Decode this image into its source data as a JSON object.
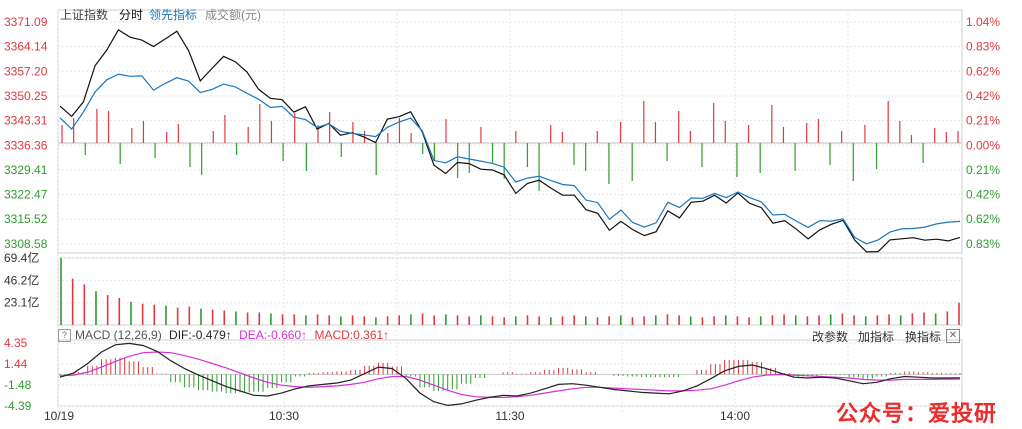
{
  "tabs": {
    "index": "上证指数",
    "time": "分时",
    "leading": "领先指标",
    "amount": "成交额(元)"
  },
  "price_axis_left": [
    "3371.09",
    "3364.14",
    "3357.20",
    "3350.25",
    "3343.31",
    "3336.36",
    "3329.41",
    "3322.47",
    "3315.52",
    "3308.58"
  ],
  "price_axis_right": [
    "1.04%",
    "0.83%",
    "0.62%",
    "0.42%",
    "0.21%",
    "0.00%",
    "0.21%",
    "0.42%",
    "0.62%",
    "0.83%"
  ],
  "volume_axis": [
    "69.4亿",
    "46.2亿",
    "23.1亿"
  ],
  "macd_axis": [
    "4.35",
    "1.44",
    "-1.48",
    "-4.39"
  ],
  "time_axis": [
    "10/19",
    "10:30",
    "11:30",
    "14:00"
  ],
  "macd_header": {
    "help": "?",
    "name": "MACD (12,26,9)",
    "dif": "DIF:-0.479↑",
    "dea": "DEA:-0.660↑",
    "macd": "MACD:0.361↑"
  },
  "buttons": {
    "params": "改参数",
    "add": "加指标",
    "switch": "换指标",
    "close": "✕"
  },
  "watermark": "公众号：爱投研",
  "colors": {
    "up": "#e0393e",
    "down": "#2e9d2e",
    "price_line": "#111111",
    "lead_line": "#1a78c2",
    "dea_line": "#d630d6",
    "grid": "#e6e6e6",
    "axis_text_left": "#e0393e",
    "axis_text_right_up": "#e0393e",
    "axis_text_right_down": "#2e9d2e"
  },
  "chart_data": {
    "type": "line",
    "title": "上证指数 分时",
    "preclose": 3336.36,
    "ylim": [
      3306.0,
      3371.09
    ],
    "series": [
      {
        "name": "上证指数",
        "values": [
          3347.4,
          3344.5,
          3348.6,
          3358.8,
          3363.2,
          3368.9,
          3366.8,
          3366.0,
          3364.2,
          3366.3,
          3368.5,
          3363.0,
          3354.5,
          3358.0,
          3361.4,
          3359.9,
          3357.0,
          3352.1,
          3349.6,
          3349.2,
          3345.7,
          3347.2,
          3340.9,
          3342.5,
          3339.2,
          3339.9,
          3338.7,
          3337.1,
          3343.7,
          3344.4,
          3345.8,
          3340.1,
          3330.7,
          3328.4,
          3331.5,
          3331.2,
          3329.6,
          3329.4,
          3328.0,
          3322.8,
          3325.6,
          3326.5,
          3324.3,
          3322.3,
          3322.3,
          3318.2,
          3317.2,
          3312.4,
          3314.9,
          3312.6,
          3310.9,
          3312.0,
          3317.9,
          3315.9,
          3320.3,
          3320.6,
          3322.3,
          3320.1,
          3322.9,
          3320.0,
          3318.8,
          3314.4,
          3315.1,
          3312.7,
          3310.0,
          3312.5,
          3314.1,
          3315.2,
          3309.6,
          3306.3,
          3306.4,
          3309.7,
          3310.0,
          3310.3,
          3309.6,
          3309.9,
          3309.4,
          3310.4
        ]
      },
      {
        "name": "领先指标",
        "values": [
          3344.1,
          3340.9,
          3345.7,
          3351.4,
          3354.8,
          3356.4,
          3355.8,
          3355.9,
          3351.9,
          3353.8,
          3355.4,
          3354.4,
          3351.2,
          3352.1,
          3353.6,
          3352.8,
          3351.0,
          3349.3,
          3347.0,
          3347.3,
          3344.3,
          3343.6,
          3341.4,
          3342.4,
          3340.3,
          3339.7,
          3339.3,
          3338.8,
          3341.4,
          3342.9,
          3344.0,
          3340.4,
          3332.1,
          3331.4,
          3333.1,
          3332.5,
          3331.9,
          3331.2,
          3330.2,
          3326.0,
          3327.1,
          3327.6,
          3326.4,
          3325.3,
          3325.0,
          3320.9,
          3320.2,
          3315.5,
          3318.1,
          3314.6,
          3313.3,
          3314.5,
          3320.3,
          3318.8,
          3321.5,
          3321.4,
          3322.8,
          3321.6,
          3323.2,
          3321.6,
          3320.4,
          3316.7,
          3316.9,
          3315.0,
          3313.2,
          3315.1,
          3315.0,
          3315.6,
          3310.4,
          3308.6,
          3309.7,
          3311.9,
          3312.8,
          3312.9,
          3313.3,
          3314.2,
          3314.7,
          3314.9
        ]
      }
    ],
    "leading_bars": [
      0.18,
      0.25,
      -0.12,
      0.34,
      0.32,
      -0.21,
      0.15,
      0.22,
      -0.15,
      0.11,
      0.19,
      -0.24,
      -0.32,
      0.12,
      0.28,
      -0.12,
      0.16,
      0.39,
      0.22,
      -0.18,
      0.3,
      -0.28,
      0.18,
      0.31,
      -0.14,
      0.21,
      0.12,
      -0.32,
      0.1,
      0.25,
      0.1,
      -0.11,
      -0.18,
      0.24,
      -0.35,
      -0.3,
      0.16,
      -0.2,
      -0.36,
      0.12,
      -0.24,
      -0.48,
      0.18,
      0.11,
      -0.22,
      -0.28,
      0.12,
      -0.41,
      0.21,
      -0.38,
      0.42,
      0.21,
      -0.18,
      0.32,
      0.12,
      -0.24,
      0.4,
      0.22,
      -0.34,
      0.18,
      -0.3,
      0.38,
      0.16,
      -0.28,
      0.2,
      0.24,
      -0.22,
      0.12,
      -0.38,
      0.18,
      -0.26,
      0.42,
      0.22,
      0.08,
      -0.2,
      0.15,
      0.11,
      0.12
    ],
    "volume": [
      69.4,
      48,
      42,
      35,
      31,
      28,
      24,
      22,
      21,
      20,
      18,
      19,
      17,
      16,
      15,
      14,
      13,
      13,
      12,
      11,
      11,
      10,
      11,
      10,
      9,
      10,
      9,
      8,
      9,
      10,
      11,
      12,
      10,
      11,
      10,
      9,
      10,
      9,
      8,
      9,
      10,
      9,
      8,
      9,
      10,
      9,
      8,
      9,
      10,
      8,
      9,
      10,
      11,
      10,
      9,
      8,
      9,
      10,
      9,
      8,
      9,
      10,
      11,
      10,
      9,
      10,
      11,
      12,
      10,
      9,
      10,
      11,
      10,
      12,
      13,
      12,
      14,
      23.1
    ],
    "macd": {
      "ylim": [
        -4.39,
        4.35
      ],
      "dif": [
        -0.4,
        0.2,
        1.5,
        3.1,
        4.1,
        4.3,
        4.0,
        3.2,
        1.9,
        0.8,
        -0.1,
        -0.9,
        -1.7,
        -2.3,
        -2.9,
        -3.0,
        -2.6,
        -2.0,
        -1.6,
        -1.4,
        -1.2,
        -0.8,
        0.1,
        1.0,
        0.8,
        -0.6,
        -2.6,
        -3.8,
        -4.3,
        -4.1,
        -3.6,
        -3.2,
        -2.9,
        -3.0,
        -2.6,
        -2.0,
        -1.4,
        -1.3,
        -1.5,
        -1.8,
        -2.1,
        -2.3,
        -2.5,
        -2.6,
        -2.7,
        -2.3,
        -1.6,
        -0.6,
        0.5,
        1.1,
        1.3,
        0.8,
        0.2,
        -0.4,
        -0.5,
        -0.4,
        -0.5,
        -0.9,
        -1.3,
        -1.1,
        -0.6,
        -0.3,
        -0.4,
        -0.5,
        -0.5,
        -0.48
      ],
      "dea": [
        -0.2,
        -0.1,
        0.3,
        1.0,
        1.8,
        2.5,
        3.0,
        3.1,
        3.0,
        2.6,
        2.1,
        1.5,
        0.9,
        0.2,
        -0.5,
        -1.1,
        -1.5,
        -1.7,
        -1.8,
        -1.7,
        -1.6,
        -1.4,
        -1.1,
        -0.6,
        -0.3,
        -0.3,
        -0.8,
        -1.5,
        -2.2,
        -2.8,
        -3.1,
        -3.2,
        -3.2,
        -3.1,
        -2.9,
        -2.6,
        -2.3,
        -2.0,
        -1.8,
        -1.8,
        -1.9,
        -2.0,
        -2.1,
        -2.2,
        -2.3,
        -2.3,
        -2.2,
        -2.0,
        -1.5,
        -0.9,
        -0.4,
        -0.1,
        0.0,
        -0.1,
        -0.2,
        -0.3,
        -0.4,
        -0.5,
        -0.7,
        -0.8,
        -0.8,
        -0.7,
        -0.7,
        -0.7,
        -0.66,
        -0.66
      ]
    }
  }
}
